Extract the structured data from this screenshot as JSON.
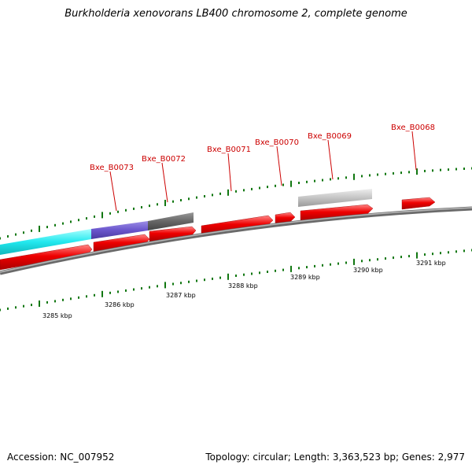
{
  "header": {
    "title": "Burkholderia xenovorans LB400 chromosome 2, complete genome"
  },
  "footer": {
    "accession": "Accession: NC_007952",
    "summary": "Topology: circular; Length: 3,363,523 bp; Genes: 2,977"
  },
  "colors": {
    "gene_forward": "#ee0000",
    "label": "#cc0000",
    "tick": "#117711",
    "backbone": "#888888",
    "track_cyan": "#22e8ee",
    "track_purple": "#6a55cc",
    "track_darkgray": "#666666",
    "track_lightgray": "#bdbdbd"
  },
  "scale": {
    "unit": "kbp",
    "labels": [
      "3285 kbp",
      "3286 kbp",
      "3287 kbp",
      "3288 kbp",
      "3289 kbp",
      "3290 kbp",
      "3291 kbp"
    ]
  },
  "genes": [
    {
      "label": "Bxe_B0073"
    },
    {
      "label": "Bxe_B0072"
    },
    {
      "label": "Bxe_B0071"
    },
    {
      "label": "Bxe_B0070"
    },
    {
      "label": "Bxe_B0069"
    },
    {
      "label": "Bxe_B0068"
    }
  ]
}
